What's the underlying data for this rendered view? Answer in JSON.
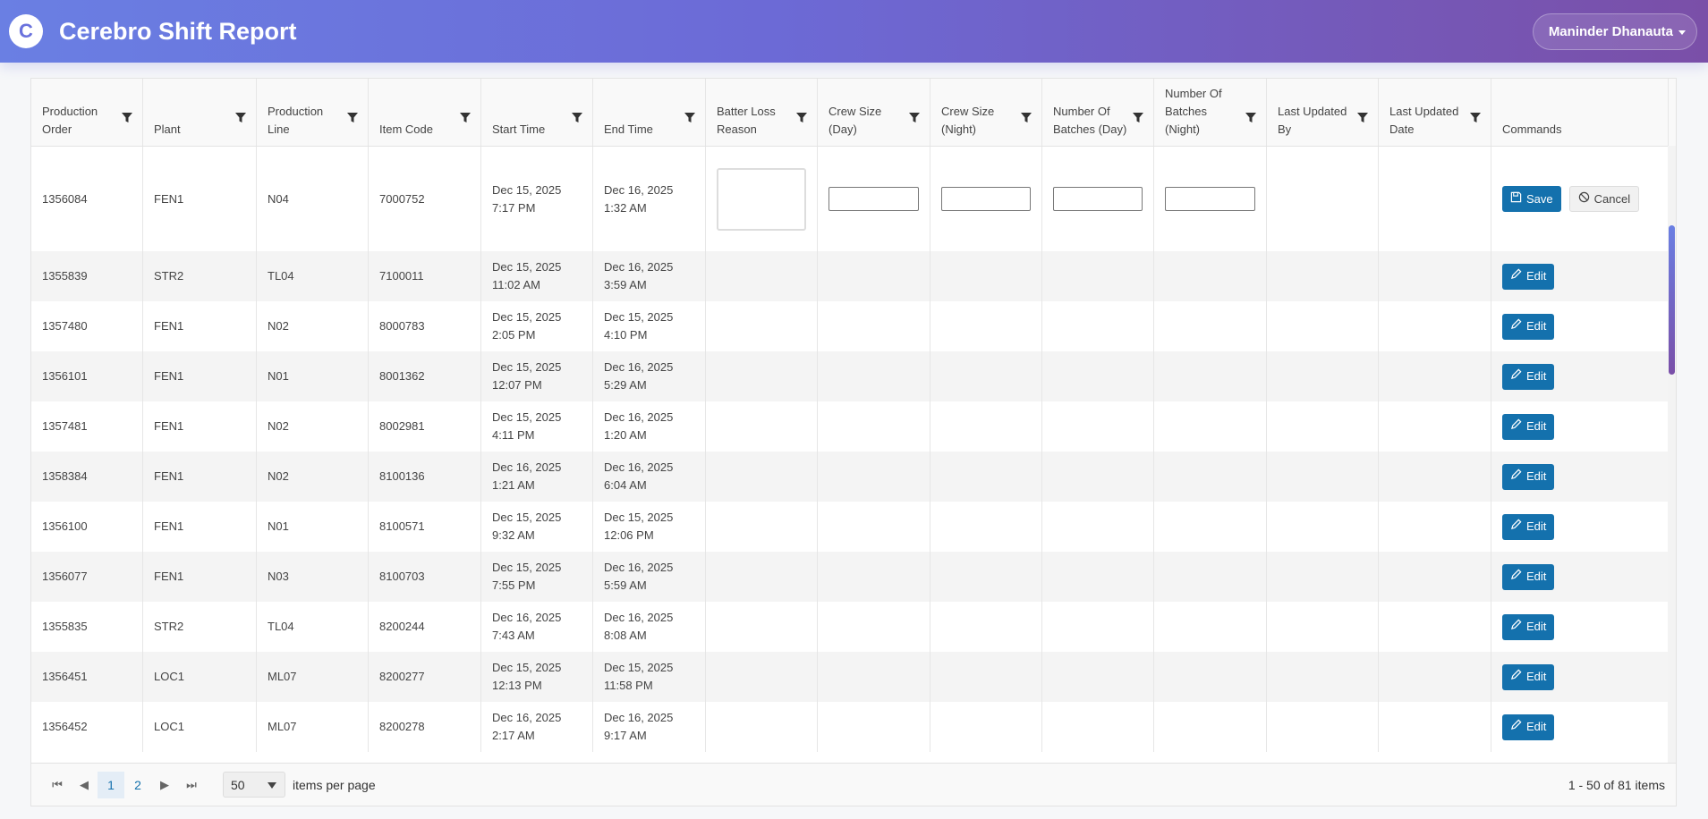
{
  "app": {
    "logo_letter": "C",
    "title": "Cerebro Shift Report",
    "user": "Maninder Dhanauta"
  },
  "colors": {
    "accent": "#1471ad",
    "header_start": "#6a7fe3",
    "header_end": "#7a4fa8"
  },
  "columns": [
    {
      "label": "Production Order",
      "filter": true
    },
    {
      "label": "Plant",
      "filter": true
    },
    {
      "label": "Production Line",
      "filter": true
    },
    {
      "label": "Item Code",
      "filter": true
    },
    {
      "label": "Start Time",
      "filter": true
    },
    {
      "label": "End Time",
      "filter": true
    },
    {
      "label": "Batter Loss Reason",
      "filter": true
    },
    {
      "label": "Crew Size (Day)",
      "filter": true
    },
    {
      "label": "Crew Size (Night)",
      "filter": true
    },
    {
      "label": "Number Of Batches (Day)",
      "filter": true
    },
    {
      "label": "Number Of Batches (Night)",
      "filter": true
    },
    {
      "label": "Last Updated By",
      "filter": true
    },
    {
      "label": "Last Updated Date",
      "filter": true
    },
    {
      "label": "Commands",
      "filter": false
    }
  ],
  "commands": {
    "save": "Save",
    "cancel": "Cancel",
    "edit": "Edit"
  },
  "rows": [
    {
      "order": "1356084",
      "plant": "FEN1",
      "line": "N04",
      "item": "7000752",
      "start": [
        "Dec 15, 2025",
        "7:17 PM"
      ],
      "end": [
        "Dec 16, 2025",
        "1:32 AM"
      ],
      "editing": true
    },
    {
      "order": "1355839",
      "plant": "STR2",
      "line": "TL04",
      "item": "7100011",
      "start": [
        "Dec 15, 2025",
        "11:02 AM"
      ],
      "end": [
        "Dec 16, 2025",
        "3:59 AM"
      ]
    },
    {
      "order": "1357480",
      "plant": "FEN1",
      "line": "N02",
      "item": "8000783",
      "start": [
        "Dec 15, 2025",
        "2:05 PM"
      ],
      "end": [
        "Dec 15, 2025",
        "4:10 PM"
      ]
    },
    {
      "order": "1356101",
      "plant": "FEN1",
      "line": "N01",
      "item": "8001362",
      "start": [
        "Dec 15, 2025",
        "12:07 PM"
      ],
      "end": [
        "Dec 16, 2025",
        "5:29 AM"
      ]
    },
    {
      "order": "1357481",
      "plant": "FEN1",
      "line": "N02",
      "item": "8002981",
      "start": [
        "Dec 15, 2025",
        "4:11 PM"
      ],
      "end": [
        "Dec 16, 2025",
        "1:20 AM"
      ]
    },
    {
      "order": "1358384",
      "plant": "FEN1",
      "line": "N02",
      "item": "8100136",
      "start": [
        "Dec 16, 2025",
        "1:21 AM"
      ],
      "end": [
        "Dec 16, 2025",
        "6:04 AM"
      ]
    },
    {
      "order": "1356100",
      "plant": "FEN1",
      "line": "N01",
      "item": "8100571",
      "start": [
        "Dec 15, 2025",
        "9:32 AM"
      ],
      "end": [
        "Dec 15, 2025",
        "12:06 PM"
      ]
    },
    {
      "order": "1356077",
      "plant": "FEN1",
      "line": "N03",
      "item": "8100703",
      "start": [
        "Dec 15, 2025",
        "7:55 PM"
      ],
      "end": [
        "Dec 16, 2025",
        "5:59 AM"
      ]
    },
    {
      "order": "1355835",
      "plant": "STR2",
      "line": "TL04",
      "item": "8200244",
      "start": [
        "Dec 16, 2025",
        "7:43 AM"
      ],
      "end": [
        "Dec 16, 2025",
        "8:08 AM"
      ]
    },
    {
      "order": "1356451",
      "plant": "LOC1",
      "line": "ML07",
      "item": "8200277",
      "start": [
        "Dec 15, 2025",
        "12:13 PM"
      ],
      "end": [
        "Dec 15, 2025",
        "11:58 PM"
      ]
    },
    {
      "order": "1356452",
      "plant": "LOC1",
      "line": "ML07",
      "item": "8200278",
      "start": [
        "Dec 16, 2025",
        "2:17 AM"
      ],
      "end": [
        "Dec 16, 2025",
        "9:17 AM"
      ]
    }
  ],
  "pager": {
    "pages": [
      "1",
      "2"
    ],
    "current_page": "1",
    "page_size": "50",
    "items_per_page_label": "items per page",
    "range": "1 - 50 of 81 items"
  }
}
